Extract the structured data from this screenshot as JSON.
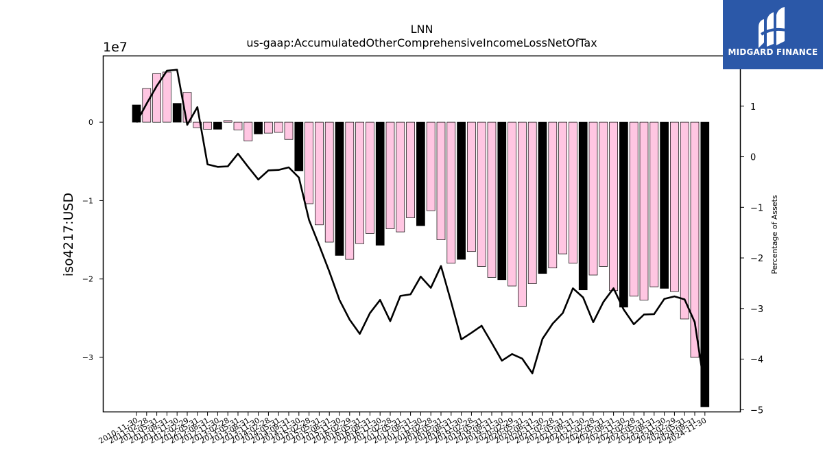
{
  "logo": {
    "text": "MIDGARD FINANCE",
    "background": "#2b58a8"
  },
  "chart_data": {
    "type": "bar",
    "title": "LNN",
    "subtitle": "us-gaap:AccumulatedOtherComprehensiveIncomeLossNetOfTax",
    "ylabel": "iso4217:USD",
    "y2label": "Percentage of Assets",
    "y_offset_label": "1e7",
    "ylim": [
      -3.7,
      0.85
    ],
    "y2lim": [
      -5.05,
      2.0
    ],
    "y_ticks": [
      0,
      -1,
      -2,
      -3
    ],
    "y_tick_labels": [
      "0",
      "−1",
      "−2",
      "−3"
    ],
    "y2_ticks": [
      1,
      0,
      -1,
      -2,
      -3,
      -4,
      -5
    ],
    "y2_tick_labels": [
      "1",
      "0",
      "−1",
      "−2",
      "−3",
      "−4",
      "−5"
    ],
    "grid": false,
    "colors": {
      "annual": "#000000",
      "quarterly": "#ffc6e2",
      "line": "#000000"
    },
    "categories": [
      "2010-11-30",
      "2011-02-28",
      "2011-05-31",
      "2011-08-31",
      "2011-11-30",
      "2012-02-29",
      "2012-05-31",
      "2012-08-31",
      "2012-11-30",
      "2013-02-28",
      "2013-05-31",
      "2013-08-31",
      "2013-11-30",
      "2014-02-28",
      "2014-05-31",
      "2014-08-31",
      "2014-11-30",
      "2015-02-28",
      "2015-05-31",
      "2015-08-31",
      "2015-11-30",
      "2016-02-29",
      "2016-05-31",
      "2016-08-31",
      "2016-11-30",
      "2017-02-28",
      "2017-05-31",
      "2017-08-31",
      "2017-11-30",
      "2018-02-28",
      "2018-05-31",
      "2018-08-31",
      "2018-11-30",
      "2019-02-28",
      "2019-05-31",
      "2019-08-31",
      "2019-11-30",
      "2020-02-29",
      "2020-05-31",
      "2020-08-31",
      "2020-11-30",
      "2021-02-28",
      "2021-05-31",
      "2021-08-31",
      "2021-11-30",
      "2022-02-28",
      "2022-05-31",
      "2022-08-31",
      "2022-11-30",
      "2023-02-28",
      "2023-05-31",
      "2023-08-31",
      "2023-11-30",
      "2024-02-29",
      "2024-05-31",
      "2024-08-31",
      "2024-11-30"
    ],
    "visible_x_tick_labels": [
      "2010-11-30",
      "2011-02-28",
      "2011-05-31",
      "2011-08-31",
      "2011-11-30",
      "2012-02-29",
      "2012-05-31",
      "2012-08-31",
      "2012-11-30",
      "2013-02-28",
      "2013-05-31",
      "2013-08-31",
      "2013-11-30",
      "2014-02-28",
      "2014-05-31",
      "2014-08-31",
      "2014-11-30",
      "2015-02-28",
      "2015-05-31",
      "2015-08-31",
      "2015-11-30",
      "2016-02-29",
      "2016-05-31",
      "2016-08-31",
      "2016-11-30",
      "2017-02-28",
      "2017-05-31",
      "2017-08-31",
      "2017-11-30",
      "2018-02-28",
      "2018-05-31",
      "2018-08-31",
      "2018-11-30",
      "2019-02-28",
      "2019-05-31",
      "2019-08-31",
      "2019-11-30",
      "2020-02-29",
      "2020-05-31",
      "2020-08-31",
      "2020-11-30",
      "2021-02-28",
      "2021-05-31",
      "2021-08-31",
      "2021-11-30",
      "2022-02-28",
      "2022-05-31",
      "2022-08-31",
      "2022-11-30",
      "2023-02-28",
      "2023-05-31",
      "2023-08-31",
      "2023-11-30",
      "2024-02-29",
      "2024-05-31",
      "2024-08-31",
      "2024-11-30"
    ],
    "values": [
      0.22,
      0.43,
      0.62,
      0.64,
      0.24,
      0.38,
      -0.07,
      -0.09,
      -0.09,
      0.02,
      -0.1,
      -0.24,
      -0.15,
      -0.14,
      -0.13,
      -0.22,
      -0.62,
      -1.04,
      -1.31,
      -1.53,
      -1.7,
      -1.75,
      -1.55,
      -1.42,
      -1.57,
      -1.36,
      -1.4,
      -1.22,
      -1.32,
      -1.13,
      -1.5,
      -1.8,
      -1.75,
      -1.65,
      -1.84,
      -1.98,
      -2.01,
      -2.09,
      -2.35,
      -2.06,
      -1.93,
      -1.86,
      -1.68,
      -1.8,
      -2.14,
      -1.95,
      -1.84,
      -2.15,
      -2.36,
      -2.22,
      -2.27,
      -2.1,
      -2.12,
      -2.16,
      -2.51,
      -3.0,
      -3.63
    ],
    "annual": [
      true,
      false,
      false,
      false,
      true,
      false,
      false,
      false,
      true,
      false,
      false,
      false,
      true,
      false,
      false,
      false,
      true,
      false,
      false,
      false,
      true,
      false,
      false,
      false,
      true,
      false,
      false,
      false,
      true,
      false,
      false,
      false,
      true,
      false,
      false,
      false,
      true,
      false,
      false,
      false,
      true,
      false,
      false,
      false,
      true,
      false,
      false,
      false,
      true,
      false,
      false,
      false,
      true,
      false,
      false,
      false,
      true
    ],
    "pct_assets": [
      0.68,
      1.05,
      1.4,
      1.7,
      1.72,
      0.63,
      0.98,
      -0.15,
      -0.2,
      -0.19,
      0.06,
      -0.2,
      -0.45,
      -0.27,
      -0.26,
      -0.21,
      -0.41,
      -1.25,
      -1.75,
      -2.27,
      -2.83,
      -3.22,
      -3.5,
      -3.09,
      -2.83,
      -3.25,
      -2.75,
      -2.72,
      -2.37,
      -2.59,
      -2.16,
      -2.87,
      -3.61,
      -3.48,
      -3.34,
      -3.68,
      -4.03,
      -3.9,
      -3.99,
      -4.28,
      -3.6,
      -3.3,
      -3.09,
      -2.6,
      -2.78,
      -3.27,
      -2.87,
      -2.6,
      -3.02,
      -3.31,
      -3.12,
      -3.11,
      -2.81,
      -2.76,
      -2.82,
      -3.27,
      -4.6
    ]
  }
}
